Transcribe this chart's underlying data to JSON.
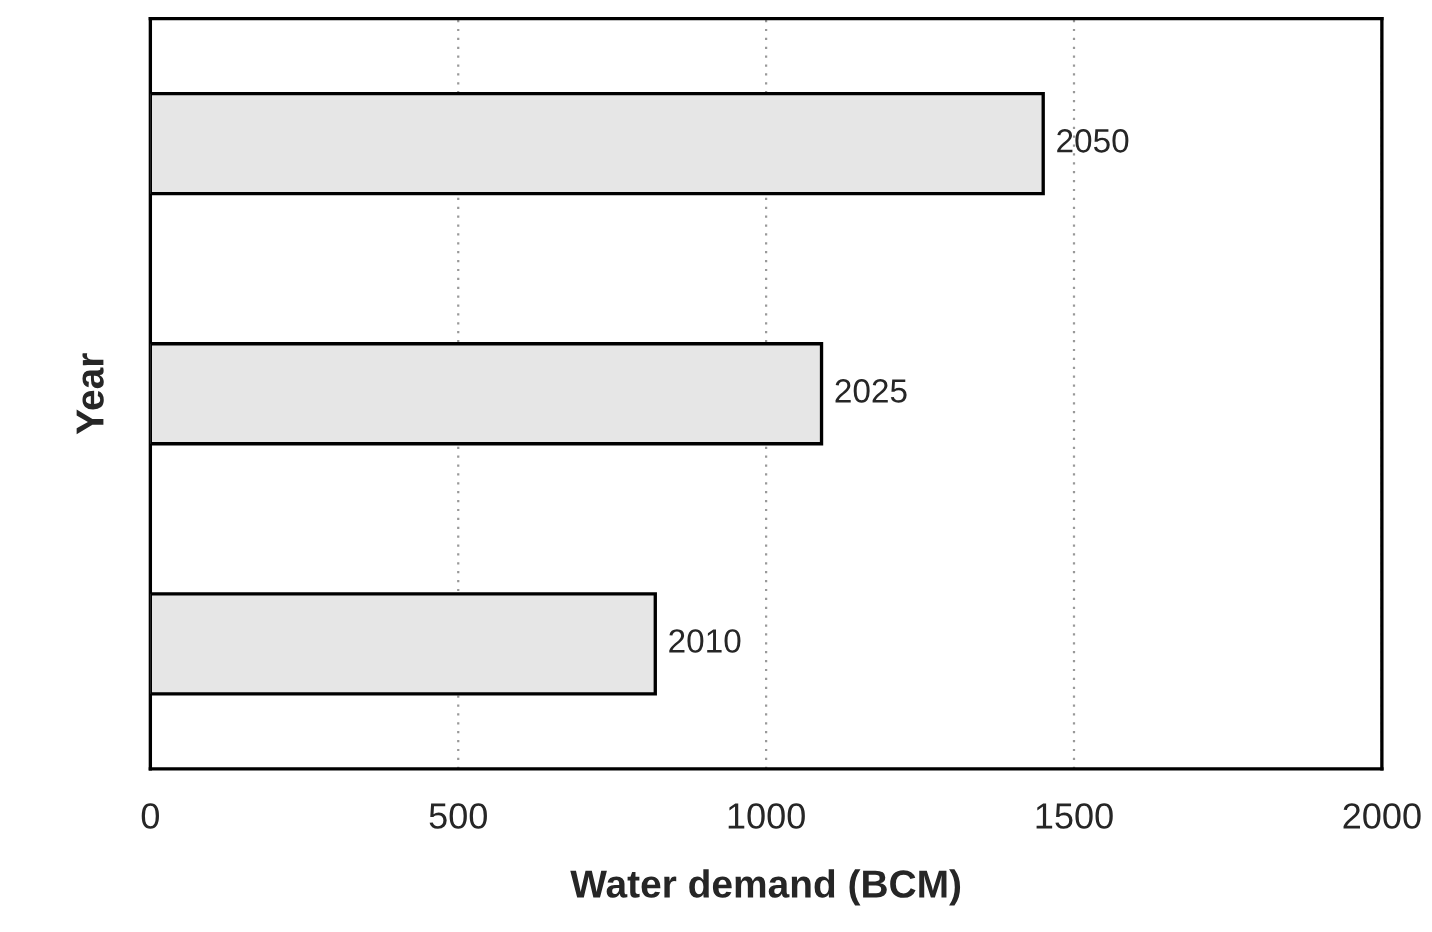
{
  "chart_data": {
    "type": "bar",
    "orientation": "horizontal",
    "xlabel": "Water demand (BCM)",
    "ylabel": "Year",
    "categories": [
      "2050",
      "2025",
      "2010"
    ],
    "values": [
      1450,
      1090,
      820
    ],
    "color": "#e6e6e6",
    "xlim": [
      0,
      2000
    ],
    "xticks": [
      0,
      500,
      1000,
      1500,
      2000
    ],
    "grid": "x",
    "tick_labels": "x"
  }
}
